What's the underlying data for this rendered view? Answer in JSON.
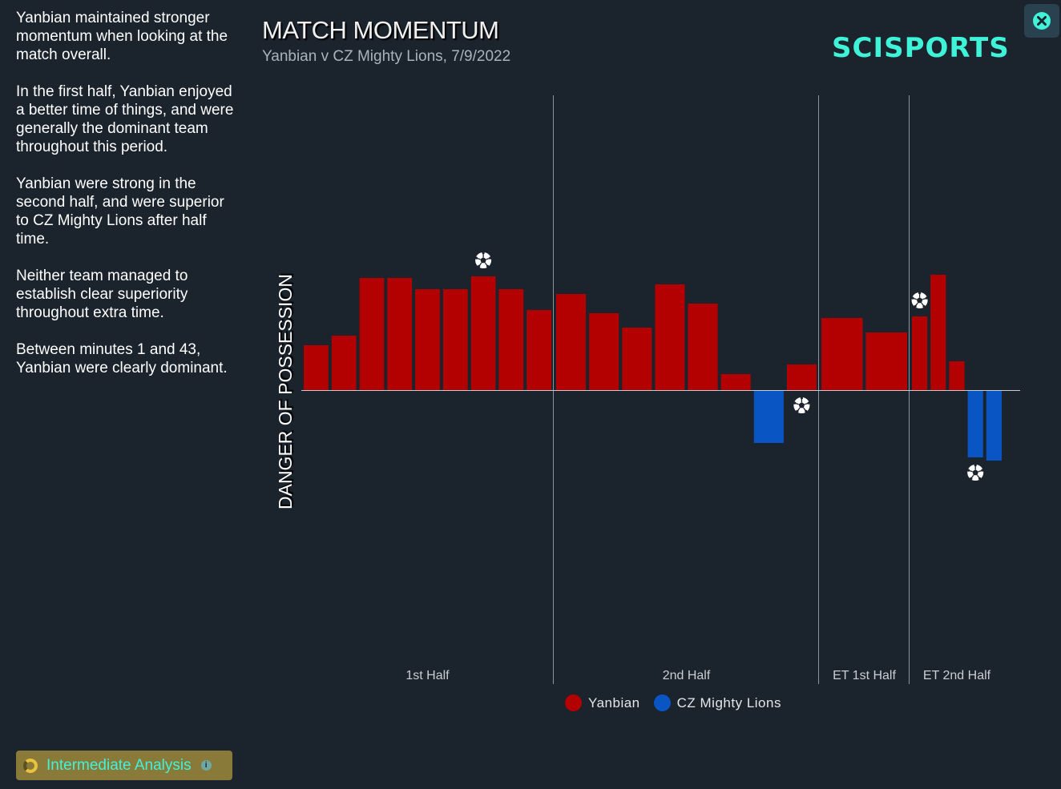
{
  "summary": [
    "Yanbian maintained stronger momentum when looking at the match overall.",
    "In the first half, Yanbian enjoyed a better time of things, and were generally the dominant team throughout this period.",
    "Yanbian were strong in the second half, and were superior to CZ Mighty Lions after half time.",
    "Neither team managed to establish clear superiority throughout extra time.",
    "Between minutes 1 and 43, Yanbian were clearly dominant."
  ],
  "header": {
    "title": "MATCH MOMENTUM",
    "subtitle": "Yanbian v CZ Mighty Lions, 7/9/2022",
    "logo": "SCISPORTS"
  },
  "icons": {
    "close": "close-icon",
    "goal": "football-icon",
    "info": "info-icon"
  },
  "analysis": {
    "label": "Intermediate Analysis"
  },
  "colors": {
    "home": "#b30000",
    "away": "#0a55c4",
    "accent": "#3ff3d9"
  },
  "chart_data": {
    "type": "bar",
    "ylabel": "DANGER OF POSSESSION",
    "ylim": [
      -10,
      10
    ],
    "periods": [
      {
        "label": "1st Half",
        "values": [
          2.8,
          3.4,
          7.0,
          7.0,
          6.3,
          6.3,
          7.1,
          6.3,
          5.0
        ]
      },
      {
        "label": "2nd Half",
        "values": [
          6.0,
          4.8,
          3.9,
          6.6,
          5.4,
          1.0,
          -3.3,
          1.6
        ]
      },
      {
        "label": "ET 1st Half",
        "values": [
          4.5,
          3.6
        ]
      },
      {
        "label": "ET 2nd Half",
        "values": [
          4.6,
          7.2,
          1.8,
          -4.2,
          -4.4
        ]
      }
    ],
    "series": [
      {
        "name": "Yanbian",
        "color": "#b30000"
      },
      {
        "name": "CZ Mighty Lions",
        "color": "#0a55c4"
      }
    ],
    "goals": [
      {
        "period": 0,
        "bar": 6,
        "team": "Yanbian"
      },
      {
        "period": 1,
        "bar": 7,
        "team": "CZ Mighty Lions"
      },
      {
        "period": 3,
        "bar": 0,
        "team": "Yanbian"
      },
      {
        "period": 3,
        "bar": 3,
        "team": "CZ Mighty Lions"
      }
    ],
    "legend": "bottom-center"
  }
}
